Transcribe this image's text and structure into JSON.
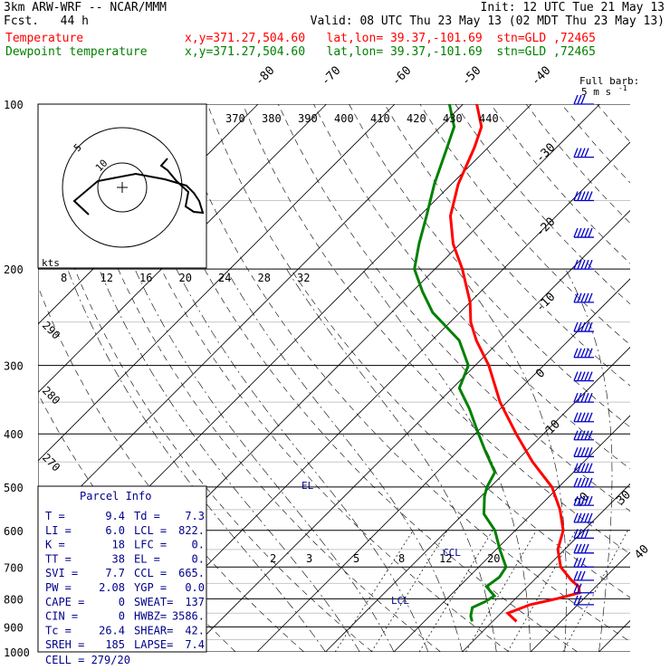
{
  "header": {
    "model": "3km ARW-WRF -- NCAR/MMM",
    "init": "Init: 12 UTC Tue 21 May 13",
    "fcst": "Fcst.   44 h",
    "valid": "Valid: 08 UTC Thu 23 May 13 (02 MDT Thu 23 May 13)",
    "temp_label": "Temperature",
    "temp_loc": "x,y=371.27,504.60   lat,lon= 39.37,-101.69  stn=GLD ,72465",
    "dew_label": "Dewpoint temperature",
    "dew_loc": "x,y=371.27,504.60   lat,lon= 39.37,-101.69  stn=GLD ,72465"
  },
  "colors": {
    "temperature": "#ff0000",
    "dewpoint": "#008000",
    "text": "#000000",
    "parcel_text": "#00008b",
    "wind": "#0000cd"
  },
  "barb_legend": {
    "title": "Full barb:",
    "value": "5 m s",
    "unit_exp": "-1"
  },
  "chart_data": {
    "type": "line",
    "title": "",
    "pressure_levels": [
      "100",
      "200",
      "300",
      "400",
      "500",
      "600",
      "700",
      "800",
      "900",
      "1000"
    ],
    "isotherm_labels": [
      "-80",
      "-70",
      "-60",
      "-50",
      "-40",
      "-30",
      "-20",
      "-10",
      "0",
      "10",
      "20",
      "30",
      "40"
    ],
    "theta_labels": [
      "370",
      "380",
      "390",
      "400",
      "410",
      "420",
      "430",
      "440"
    ],
    "mixing_ratio_labels_upper": [
      "8",
      "12",
      "16",
      "20",
      "24",
      "28",
      "32"
    ],
    "mixing_ratio_labels_lower": [
      "2",
      "3",
      "5",
      "8",
      "12",
      "20"
    ],
    "dry_adiabat_labels": [
      "290",
      "280",
      "270"
    ],
    "hodograph": {
      "unit": "kts",
      "ring_labels": [
        "5",
        "10"
      ]
    },
    "annotations": {
      "lcl_label": "LCL",
      "ccl_label": "CCL",
      "el_label": "EL"
    },
    "series": [
      {
        "name": "Temperature",
        "unit": "C",
        "points": [
          [
            880,
            13.5
          ],
          [
            850,
            11.0
          ],
          [
            820,
            13.0
          ],
          [
            800,
            16.0
          ],
          [
            780,
            18.5
          ],
          [
            760,
            17.5
          ],
          [
            740,
            15.5
          ],
          [
            700,
            12.0
          ],
          [
            650,
            9.0
          ],
          [
            600,
            7.0
          ],
          [
            550,
            3.5
          ],
          [
            500,
            -1.0
          ],
          [
            450,
            -7.5
          ],
          [
            400,
            -14.0
          ],
          [
            350,
            -21.0
          ],
          [
            300,
            -28.0
          ],
          [
            270,
            -33.5
          ],
          [
            250,
            -37.0
          ],
          [
            230,
            -40.0
          ],
          [
            200,
            -46.0
          ],
          [
            180,
            -51.0
          ],
          [
            160,
            -55.5
          ],
          [
            140,
            -59.0
          ],
          [
            120,
            -62.0
          ],
          [
            110,
            -64.0
          ],
          [
            100,
            -68.0
          ]
        ]
      },
      {
        "name": "Dewpoint temperature",
        "unit": "C",
        "points": [
          [
            880,
            7.0
          ],
          [
            860,
            6.0
          ],
          [
            830,
            5.0
          ],
          [
            810,
            6.0
          ],
          [
            790,
            6.5
          ],
          [
            760,
            4.0
          ],
          [
            730,
            4.5
          ],
          [
            700,
            4.0
          ],
          [
            650,
            0.5
          ],
          [
            600,
            -3.0
          ],
          [
            560,
            -7.0
          ],
          [
            520,
            -9.5
          ],
          [
            500,
            -10.5
          ],
          [
            470,
            -11.5
          ],
          [
            430,
            -16.0
          ],
          [
            400,
            -19.5
          ],
          [
            360,
            -24.5
          ],
          [
            330,
            -29.0
          ],
          [
            300,
            -31.0
          ],
          [
            270,
            -36.0
          ],
          [
            240,
            -44.0
          ],
          [
            220,
            -48.5
          ],
          [
            200,
            -53.0
          ],
          [
            180,
            -56.0
          ],
          [
            160,
            -59.0
          ],
          [
            140,
            -62.5
          ],
          [
            120,
            -66.0
          ],
          [
            110,
            -68.0
          ],
          [
            100,
            -72.0
          ]
        ]
      }
    ],
    "parcel_info": {
      "title": "Parcel Info",
      "rows": [
        [
          "T  =",
          "9.4",
          "Td =",
          "7.3"
        ],
        [
          "LI =",
          "6.0",
          "LCL =",
          "822."
        ],
        [
          "K  =",
          "18",
          "LFC =",
          "0."
        ],
        [
          "TT =",
          "38",
          "EL  =",
          "0."
        ],
        [
          "SVI =",
          "7.7",
          "CCL =",
          "665."
        ],
        [
          "PW =",
          "2.08",
          "YGP =",
          "0.0"
        ],
        [
          "CAPE =",
          "0",
          "SWEAT=",
          "137"
        ],
        [
          "CIN  =",
          "0",
          "HWBZ=",
          "3586."
        ],
        [
          "Tc =",
          "26.4",
          "SHEAR=",
          "42."
        ],
        [
          "SREH =",
          "185",
          "LAPSE=",
          "7.4"
        ]
      ],
      "cell": "CELL = 279/20"
    },
    "wind_profile_m_s": [
      {
        "p": 100,
        "spd": 15
      },
      {
        "p": 125,
        "spd": 20
      },
      {
        "p": 150,
        "spd": 25
      },
      {
        "p": 175,
        "spd": 25
      },
      {
        "p": 200,
        "spd": 25
      },
      {
        "p": 230,
        "spd": 25
      },
      {
        "p": 260,
        "spd": 25
      },
      {
        "p": 290,
        "spd": 25
      },
      {
        "p": 320,
        "spd": 25
      },
      {
        "p": 350,
        "spd": 25
      },
      {
        "p": 380,
        "spd": 25
      },
      {
        "p": 410,
        "spd": 25
      },
      {
        "p": 440,
        "spd": 25
      },
      {
        "p": 470,
        "spd": 25
      },
      {
        "p": 500,
        "spd": 25
      },
      {
        "p": 540,
        "spd": 25
      },
      {
        "p": 580,
        "spd": 25
      },
      {
        "p": 620,
        "spd": 20
      },
      {
        "p": 660,
        "spd": 20
      },
      {
        "p": 700,
        "spd": 15
      },
      {
        "p": 740,
        "spd": 15
      },
      {
        "p": 780,
        "spd": 10
      },
      {
        "p": 820,
        "spd": 10
      }
    ]
  }
}
